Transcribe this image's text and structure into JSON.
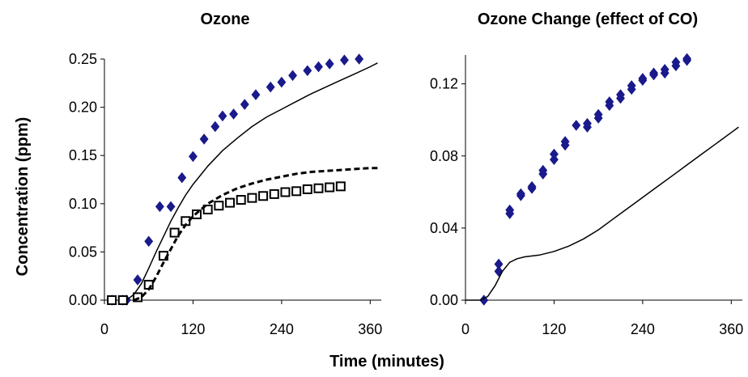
{
  "figure": {
    "shared_ylabel": "Concentration (ppm)",
    "shared_xlabel": "Time (minutes)"
  },
  "chart_data": [
    {
      "type": "scatter",
      "title": "Ozone",
      "xlabel": "Time (minutes)",
      "ylabel": "Concentration (ppm)",
      "xlim": [
        0,
        375
      ],
      "ylim": [
        0,
        0.25
      ],
      "xticks": [
        0,
        120,
        240,
        360
      ],
      "xtick_labels": [
        "0",
        "120",
        "240",
        "360"
      ],
      "yticks": [
        0,
        0.05,
        0.1,
        0.15,
        0.2,
        0.25
      ],
      "ytick_labels": [
        "0.00",
        "0.05",
        "0.10",
        "0.15",
        "0.20",
        "0.25"
      ],
      "grid": false,
      "legend": "none",
      "series": [
        {
          "kind": "points",
          "marker": "diamond",
          "color": "#1a1a8c",
          "points": [
            [
              10,
              0
            ],
            [
              25,
              0
            ],
            [
              30,
              0
            ],
            [
              45,
              0.021
            ],
            [
              60,
              0.061
            ],
            [
              75,
              0.097
            ],
            [
              90,
              0.097
            ],
            [
              105,
              0.127
            ],
            [
              120,
              0.149
            ],
            [
              135,
              0.167
            ],
            [
              150,
              0.18
            ],
            [
              160,
              0.191
            ],
            [
              175,
              0.193
            ],
            [
              190,
              0.203
            ],
            [
              205,
              0.213
            ],
            [
              225,
              0.221
            ],
            [
              240,
              0.226
            ],
            [
              255,
              0.233
            ],
            [
              275,
              0.238
            ],
            [
              290,
              0.242
            ],
            [
              305,
              0.245
            ],
            [
              325,
              0.249
            ],
            [
              345,
              0.25
            ]
          ]
        },
        {
          "kind": "points",
          "marker": "square-open",
          "color": "#000000",
          "points": [
            [
              10,
              0
            ],
            [
              25,
              0
            ],
            [
              45,
              0.003
            ],
            [
              60,
              0.016
            ],
            [
              80,
              0.046
            ],
            [
              95,
              0.07
            ],
            [
              110,
              0.082
            ],
            [
              125,
              0.089
            ],
            [
              140,
              0.094
            ],
            [
              155,
              0.098
            ],
            [
              170,
              0.101
            ],
            [
              185,
              0.104
            ],
            [
              200,
              0.106
            ],
            [
              215,
              0.108
            ],
            [
              230,
              0.11
            ],
            [
              245,
              0.112
            ],
            [
              260,
              0.113
            ],
            [
              275,
              0.115
            ],
            [
              290,
              0.116
            ],
            [
              305,
              0.117
            ],
            [
              320,
              0.118
            ]
          ]
        },
        {
          "kind": "line",
          "style": "solid",
          "color": "#000000",
          "points": [
            [
              30,
              0
            ],
            [
              40,
              0.006
            ],
            [
              50,
              0.017
            ],
            [
              60,
              0.033
            ],
            [
              70,
              0.05
            ],
            [
              80,
              0.066
            ],
            [
              90,
              0.082
            ],
            [
              100,
              0.096
            ],
            [
              110,
              0.109
            ],
            [
              120,
              0.12
            ],
            [
              140,
              0.139
            ],
            [
              160,
              0.155
            ],
            [
              180,
              0.168
            ],
            [
              200,
              0.18
            ],
            [
              220,
              0.19
            ],
            [
              240,
              0.198
            ],
            [
              260,
              0.206
            ],
            [
              280,
              0.214
            ],
            [
              300,
              0.221
            ],
            [
              320,
              0.228
            ],
            [
              340,
              0.235
            ],
            [
              360,
              0.242
            ],
            [
              370,
              0.246
            ]
          ]
        },
        {
          "kind": "line",
          "style": "dashed",
          "color": "#000000",
          "points": [
            [
              40,
              0
            ],
            [
              50,
              0.003
            ],
            [
              60,
              0.011
            ],
            [
              70,
              0.024
            ],
            [
              80,
              0.039
            ],
            [
              90,
              0.053
            ],
            [
              100,
              0.067
            ],
            [
              110,
              0.078
            ],
            [
              120,
              0.087
            ],
            [
              140,
              0.1
            ],
            [
              160,
              0.109
            ],
            [
              180,
              0.116
            ],
            [
              200,
              0.121
            ],
            [
              220,
              0.125
            ],
            [
              240,
              0.128
            ],
            [
              260,
              0.131
            ],
            [
              280,
              0.133
            ],
            [
              300,
              0.134
            ],
            [
              320,
              0.135
            ],
            [
              340,
              0.136
            ],
            [
              360,
              0.137
            ],
            [
              370,
              0.137
            ]
          ]
        }
      ]
    },
    {
      "type": "scatter",
      "title": "Ozone Change (effect of CO)",
      "xlabel": "Time (minutes)",
      "ylabel": "",
      "xlim": [
        0,
        375
      ],
      "ylim": [
        0,
        0.136
      ],
      "xticks": [
        0,
        120,
        240,
        360
      ],
      "xtick_labels": [
        "0",
        "120",
        "240",
        "360"
      ],
      "yticks": [
        0,
        0.04,
        0.08,
        0.12
      ],
      "ytick_labels": [
        "0.00",
        "0.04",
        "0.08",
        "0.12"
      ],
      "grid": false,
      "legend": "none",
      "series": [
        {
          "kind": "points",
          "marker": "diamond",
          "color": "#1a1a8c",
          "points": [
            [
              25,
              0
            ],
            [
              45,
              0.016
            ],
            [
              45,
              0.02
            ],
            [
              60,
              0.048
            ],
            [
              60,
              0.05
            ],
            [
              75,
              0.058
            ],
            [
              75,
              0.059
            ],
            [
              90,
              0.062
            ],
            [
              90,
              0.063
            ],
            [
              105,
              0.07
            ],
            [
              105,
              0.072
            ],
            [
              120,
              0.078
            ],
            [
              120,
              0.081
            ],
            [
              135,
              0.086
            ],
            [
              135,
              0.088
            ],
            [
              150,
              0.097
            ],
            [
              165,
              0.096
            ],
            [
              165,
              0.098
            ],
            [
              180,
              0.101
            ],
            [
              180,
              0.103
            ],
            [
              195,
              0.108
            ],
            [
              195,
              0.11
            ],
            [
              210,
              0.112
            ],
            [
              210,
              0.114
            ],
            [
              225,
              0.117
            ],
            [
              225,
              0.119
            ],
            [
              240,
              0.122
            ],
            [
              240,
              0.123
            ],
            [
              255,
              0.125
            ],
            [
              255,
              0.126
            ],
            [
              270,
              0.126
            ],
            [
              270,
              0.128
            ],
            [
              285,
              0.13
            ],
            [
              285,
              0.132
            ],
            [
              300,
              0.133
            ],
            [
              300,
              0.134
            ]
          ]
        },
        {
          "kind": "line",
          "style": "solid",
          "color": "#000000",
          "points": [
            [
              0,
              0
            ],
            [
              20,
              0
            ],
            [
              30,
              0.002
            ],
            [
              40,
              0.008
            ],
            [
              50,
              0.016
            ],
            [
              60,
              0.021
            ],
            [
              70,
              0.023
            ],
            [
              80,
              0.024
            ],
            [
              100,
              0.025
            ],
            [
              120,
              0.027
            ],
            [
              140,
              0.03
            ],
            [
              160,
              0.034
            ],
            [
              180,
              0.039
            ],
            [
              200,
              0.045
            ],
            [
              220,
              0.051
            ],
            [
              240,
              0.057
            ],
            [
              260,
              0.063
            ],
            [
              280,
              0.069
            ],
            [
              300,
              0.075
            ],
            [
              320,
              0.081
            ],
            [
              340,
              0.087
            ],
            [
              360,
              0.093
            ],
            [
              370,
              0.096
            ]
          ]
        }
      ]
    }
  ]
}
